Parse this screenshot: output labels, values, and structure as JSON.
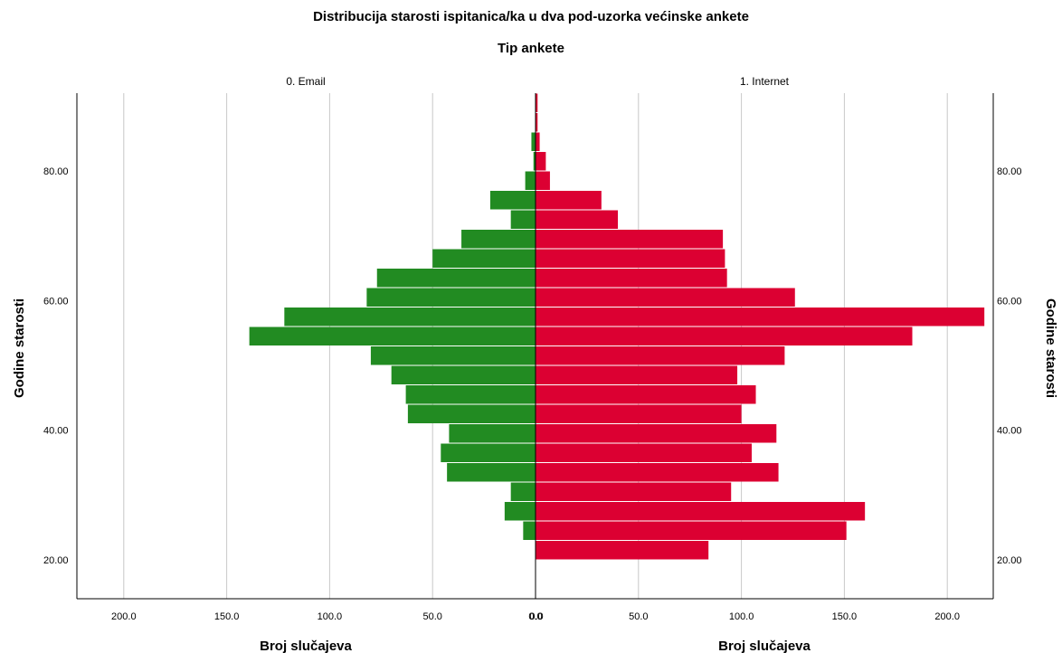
{
  "chart_data": {
    "type": "bar",
    "orientation": "horizontal",
    "title": "Distribucija starosti ispitanica/ka u dva pod-uzorka većinske ankete",
    "panel_title": "Tip ankete",
    "ylabel": "Godine starosti",
    "xlabel": "Broj slučajeva",
    "bin_width": 3,
    "ylim": [
      14,
      92
    ],
    "y_ticks": [
      {
        "value": 20,
        "label": "20.00"
      },
      {
        "value": 40,
        "label": "40.00"
      },
      {
        "value": 60,
        "label": "60.00"
      },
      {
        "value": 80,
        "label": "80.00"
      }
    ],
    "x_ticks": [
      {
        "value": 200,
        "label": "200.0"
      },
      {
        "value": 150,
        "label": "150.0"
      },
      {
        "value": 100,
        "label": "100.0"
      },
      {
        "value": 50,
        "label": "50.0"
      },
      {
        "value": 0,
        "label": "0.0"
      }
    ],
    "series": [
      {
        "name": "0. Email",
        "color": "#228B22",
        "xlim": [
          222,
          0
        ],
        "bins": [
          {
            "start": 23,
            "value": 6
          },
          {
            "start": 26,
            "value": 15
          },
          {
            "start": 29,
            "value": 12
          },
          {
            "start": 32,
            "value": 43
          },
          {
            "start": 35,
            "value": 46
          },
          {
            "start": 38,
            "value": 42
          },
          {
            "start": 41,
            "value": 62
          },
          {
            "start": 44,
            "value": 63
          },
          {
            "start": 47,
            "value": 70
          },
          {
            "start": 50,
            "value": 80
          },
          {
            "start": 53,
            "value": 139
          },
          {
            "start": 56,
            "value": 122
          },
          {
            "start": 59,
            "value": 82
          },
          {
            "start": 62,
            "value": 77
          },
          {
            "start": 65,
            "value": 50
          },
          {
            "start": 68,
            "value": 36
          },
          {
            "start": 71,
            "value": 12
          },
          {
            "start": 74,
            "value": 22
          },
          {
            "start": 77,
            "value": 5
          },
          {
            "start": 80,
            "value": 1
          },
          {
            "start": 83,
            "value": 2
          }
        ]
      },
      {
        "name": "1. Internet",
        "color": "#DC0032",
        "xlim": [
          0,
          222
        ],
        "bins": [
          {
            "start": 20,
            "value": 84
          },
          {
            "start": 23,
            "value": 151
          },
          {
            "start": 26,
            "value": 160
          },
          {
            "start": 29,
            "value": 95
          },
          {
            "start": 32,
            "value": 118
          },
          {
            "start": 35,
            "value": 105
          },
          {
            "start": 38,
            "value": 117
          },
          {
            "start": 41,
            "value": 100
          },
          {
            "start": 44,
            "value": 107
          },
          {
            "start": 47,
            "value": 98
          },
          {
            "start": 50,
            "value": 121
          },
          {
            "start": 53,
            "value": 183
          },
          {
            "start": 56,
            "value": 218
          },
          {
            "start": 59,
            "value": 126
          },
          {
            "start": 62,
            "value": 93
          },
          {
            "start": 65,
            "value": 92
          },
          {
            "start": 68,
            "value": 91
          },
          {
            "start": 71,
            "value": 40
          },
          {
            "start": 74,
            "value": 32
          },
          {
            "start": 77,
            "value": 7
          },
          {
            "start": 80,
            "value": 5
          },
          {
            "start": 83,
            "value": 2
          },
          {
            "start": 86,
            "value": 1
          },
          {
            "start": 89,
            "value": 1
          }
        ]
      }
    ],
    "grid": true,
    "legend": "none"
  }
}
